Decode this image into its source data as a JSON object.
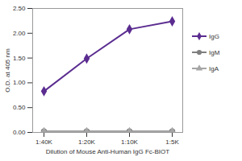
{
  "chart_data": {
    "type": "line",
    "x_label": "Dilution of Mouse Anti-Human IgG Fc-BIOT",
    "y_label": "O.D. at 405 nm",
    "categories": [
      "1:40K",
      "1:20K",
      "1:10K",
      "1:5K"
    ],
    "series": [
      {
        "name": "IgG",
        "color": "#5b2d90",
        "marker": "diamond",
        "values": [
          0.83,
          1.49,
          2.08,
          2.24
        ]
      },
      {
        "name": "IgM",
        "color": "#7f7f7f",
        "marker": "circle",
        "values": [
          0.02,
          0.02,
          0.02,
          0.02
        ]
      },
      {
        "name": "IgA",
        "color": "#a6a6a6",
        "marker": "triangle",
        "values": [
          0.01,
          0.01,
          0.01,
          0.01
        ]
      }
    ],
    "ylim": [
      0,
      2.5
    ],
    "yticks": [
      {
        "value": 0,
        "label": "0.00"
      },
      {
        "value": 0.5,
        "label": "0.50"
      },
      {
        "value": 1,
        "label": "1.00"
      },
      {
        "value": 1.5,
        "label": "1.50"
      },
      {
        "value": 2,
        "label": "2.00"
      },
      {
        "value": 2.5,
        "label": "2.50"
      }
    ],
    "grid": false,
    "legend": "right"
  }
}
